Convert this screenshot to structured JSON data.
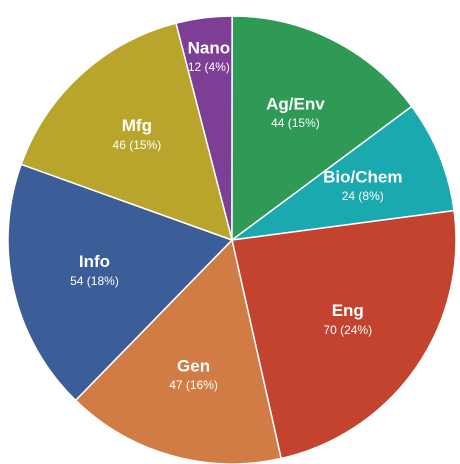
{
  "chart_data": {
    "type": "pie",
    "categories": [
      "Nano",
      "Ag/Env",
      "Bio/Chem",
      "Eng",
      "Gen",
      "Info",
      "Mfg"
    ],
    "values": [
      12,
      44,
      24,
      70,
      47,
      54,
      46
    ],
    "value_labels": [
      "12 (4%)",
      "44 (15%)",
      "24 (8%)",
      "70 (24%)",
      "47 (16%)",
      "54 (18%)",
      "46 (15%)"
    ],
    "colors": [
      "#7d3f96",
      "#2f9a56",
      "#1aa9ae",
      "#c4432f",
      "#d17c45",
      "#3b5e98",
      "#b9a52b"
    ]
  }
}
